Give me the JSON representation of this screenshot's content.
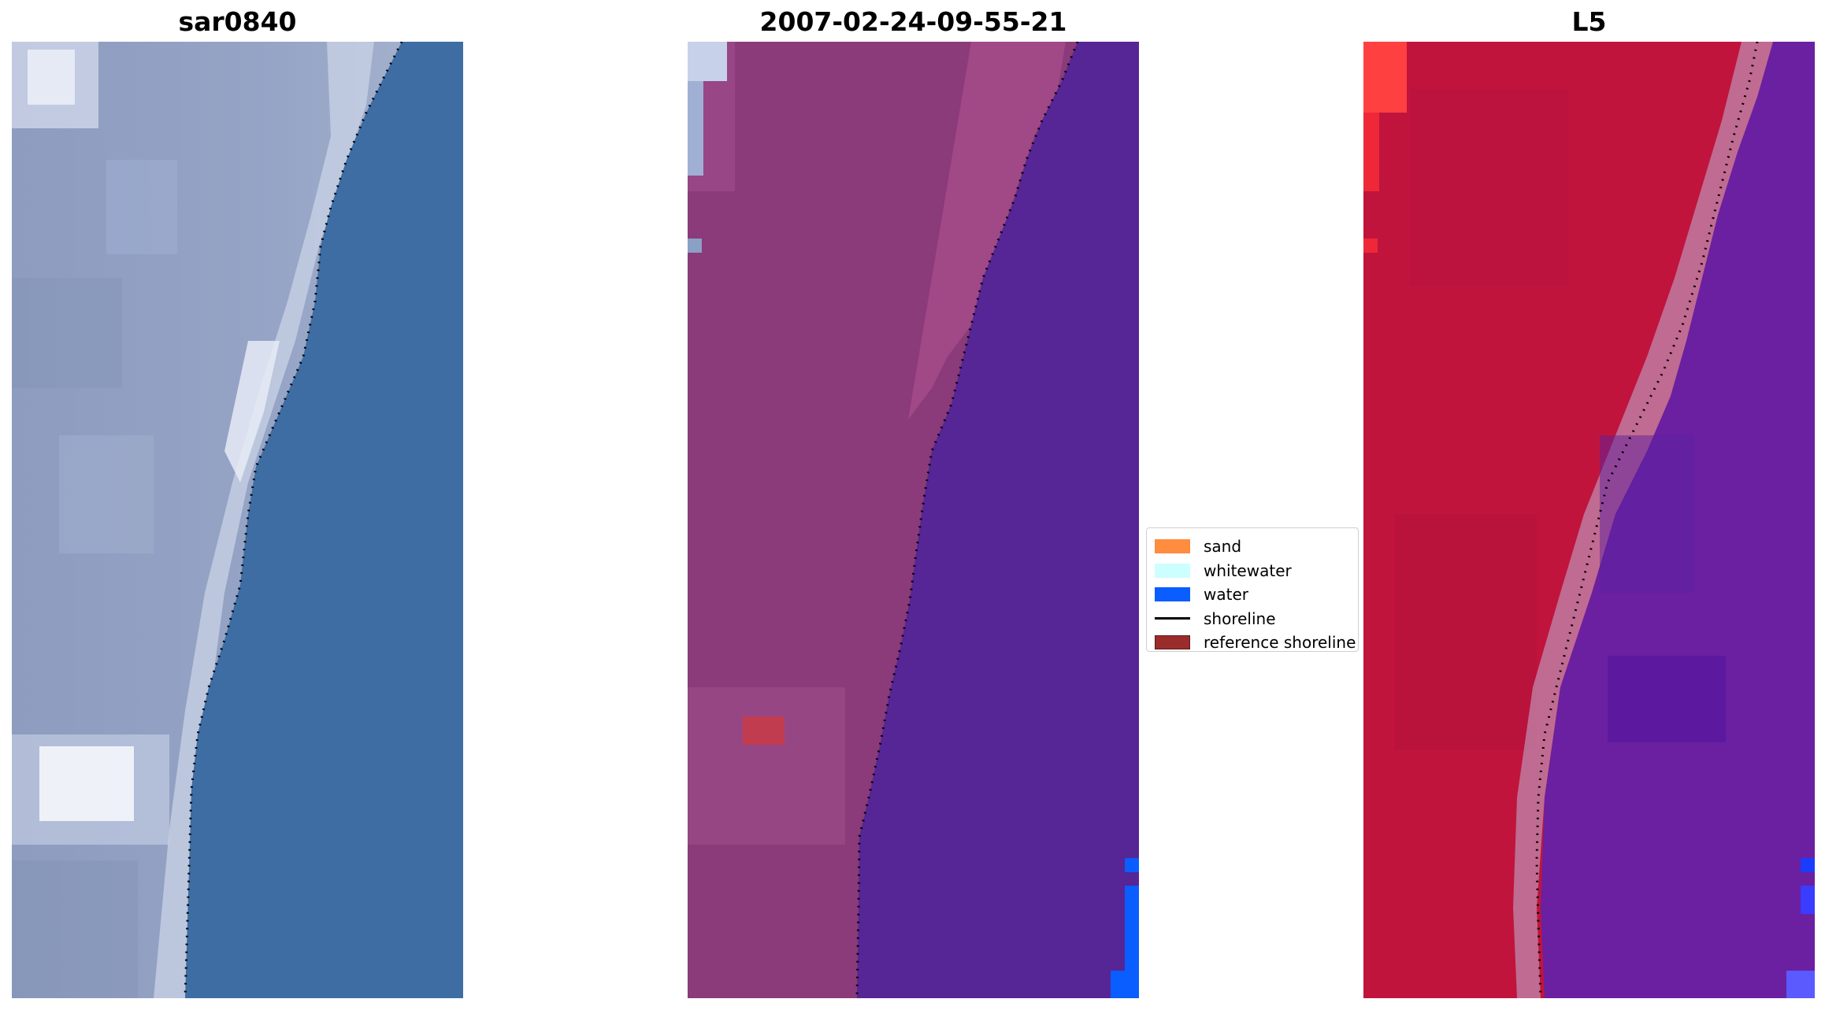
{
  "panels": [
    {
      "title": "sar0840"
    },
    {
      "title": "2007-02-24-09-55-21"
    },
    {
      "title": "L5"
    }
  ],
  "legend": {
    "items": [
      {
        "label": "sand",
        "color": "#ff8c3f",
        "kind": "patch"
      },
      {
        "label": "whitewater",
        "color": "#ccffff",
        "kind": "patch"
      },
      {
        "label": "water",
        "color": "#0a5dff",
        "kind": "patch"
      },
      {
        "label": "shoreline",
        "color": "#000000",
        "kind": "line"
      },
      {
        "label": "reference shoreline",
        "color": "#9b2c2c",
        "kind": "patch"
      }
    ]
  },
  "colors": {
    "rgb_land": "#8f9fbf",
    "rgb_water": "#3d6da3",
    "class_land": "#8b3a7a",
    "class_water": "#562596",
    "class_sand_patch": "#c23c4f",
    "class_water_pixels": "#0a5dff",
    "ndwi_land": "#c0143c",
    "ndwi_water": "#6a20a0",
    "ndwi_transition": "#c07aa0"
  }
}
